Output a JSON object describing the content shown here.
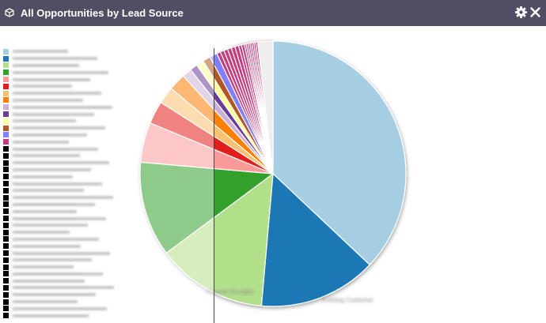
{
  "dashlet": {
    "title": "All Opportunities by Lead Source",
    "icons": {
      "dashlet": "dashlet-cube-icon",
      "settings": "gear-icon",
      "close": "close-icon"
    }
  },
  "chart_data": {
    "type": "pie",
    "title": "All Opportunities by Lead Source",
    "legend_position": "left",
    "slices": [
      {
        "name": "",
        "value": 160,
        "color": "#a6cee3"
      },
      {
        "name": "Existing Customer",
        "value": 62,
        "color": "#1f78b4"
      },
      {
        "name": "Internet (Google)",
        "value": 58,
        "color": "#b2df8a"
      },
      {
        "name": "",
        "value": 50,
        "color": "#33a02c"
      },
      {
        "name": "",
        "value": 21,
        "color": "#fb9a99"
      },
      {
        "name": "",
        "value": 12,
        "color": "#e31a1c"
      },
      {
        "name": "",
        "value": 9,
        "color": "#fdbf6f"
      },
      {
        "name": "",
        "value": 9,
        "color": "#ff7f00"
      },
      {
        "name": "",
        "value": 5,
        "color": "#cab2d6"
      },
      {
        "name": "",
        "value": 4,
        "color": "#6a3d9a"
      },
      {
        "name": "",
        "value": 4,
        "color": "#ffff99"
      },
      {
        "name": "",
        "value": 4,
        "color": "#b15928"
      },
      {
        "name": "",
        "value": 4,
        "color": "#8080ff"
      },
      {
        "name": "",
        "value": 2,
        "color": "#c43c7e"
      },
      {
        "name": "",
        "value": 2,
        "color": "#c43c7e"
      },
      {
        "name": "",
        "value": 2,
        "color": "#c43c7e"
      },
      {
        "name": "",
        "value": 2,
        "color": "#c43c7e"
      },
      {
        "name": "",
        "value": 2,
        "color": "#c43c7e"
      },
      {
        "name": "",
        "value": 2,
        "color": "#c43c7e"
      },
      {
        "name": "",
        "value": 1.5,
        "color": "#c43c7e"
      },
      {
        "name": "",
        "value": 1.5,
        "color": "#c43c7e"
      },
      {
        "name": "",
        "value": 1,
        "color": "#c43c7e"
      },
      {
        "name": "",
        "value": 1,
        "color": "#c43c7e"
      },
      {
        "name": "",
        "value": 1,
        "color": "#c43c7e"
      },
      {
        "name": "",
        "value": 1,
        "color": "#c43c7e"
      },
      {
        "name": "",
        "value": 1,
        "color": "#c43c7e"
      },
      {
        "name": "",
        "value": 1,
        "color": "#c43c7e"
      },
      {
        "name": "",
        "value": 1,
        "color": "#c43c7e"
      },
      {
        "name": "",
        "value": 8,
        "color": "#eeeeee"
      }
    ],
    "blurred_slice_labels": [
      "Existing Customer",
      "Internet (Google)"
    ],
    "legend_swatch_colors": [
      "#a6cee3",
      "#1f78b4",
      "#b2df8a",
      "#33a02c",
      "#fb9a99",
      "#e31a1c",
      "#fdbf6f",
      "#ff7f00",
      "#cab2d6",
      "#6a3d9a",
      "#ffff99",
      "#b15928",
      "#8080ff",
      "#c43c7e",
      "#000000",
      "#000000",
      "#000000",
      "#000000",
      "#000000",
      "#000000",
      "#000000",
      "#000000",
      "#000000",
      "#000000",
      "#000000",
      "#000000",
      "#000000",
      "#000000",
      "#000000",
      "#000000",
      "#000000",
      "#000000",
      "#000000",
      "#000000",
      "#000000",
      "#000000",
      "#000000",
      "#000000",
      "#000000"
    ],
    "ghost_pie_colors": [
      "#f4b8be",
      "#fbd6db",
      "#fee7cf",
      "#fed9b0",
      "#e8e0f0",
      "#d9cce6",
      "#fffce0",
      "#f0dcd0",
      "#e0e0fa",
      "#c43c7e"
    ]
  }
}
